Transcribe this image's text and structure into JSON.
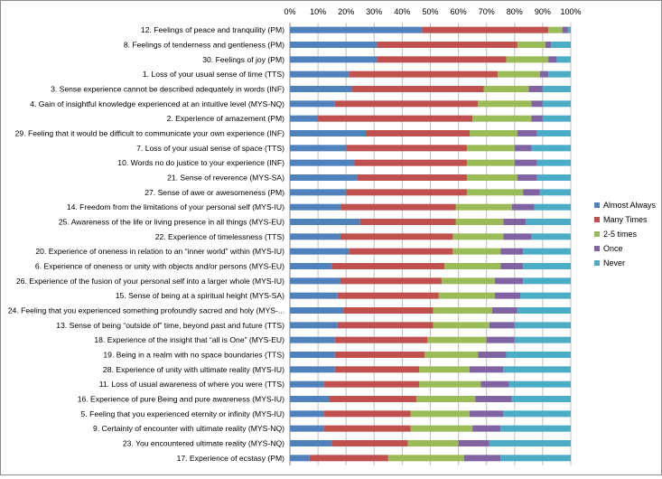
{
  "chart_data": {
    "type": "stacked-bar-horizontal-100",
    "xlim": [
      0,
      100
    ],
    "x_ticks": [
      "0%",
      "10%",
      "20%",
      "30%",
      "40%",
      "50%",
      "60%",
      "70%",
      "80%",
      "90%",
      "100%"
    ],
    "grid": true,
    "legend_position": "right",
    "series": [
      {
        "name": "Almost Always",
        "color": "#4f81bd"
      },
      {
        "name": "Many Times",
        "color": "#c0504d"
      },
      {
        "name": "2-5 times",
        "color": "#9bbb59"
      },
      {
        "name": "Once",
        "color": "#8064a2"
      },
      {
        "name": "Never",
        "color": "#4bacc6"
      }
    ],
    "categories": [
      {
        "label": "12. Feelings of peace and tranquility (PM)",
        "values": [
          47,
          45,
          5,
          2,
          1
        ]
      },
      {
        "label": "8. Feelings of tenderness and gentleness (PM)",
        "values": [
          31,
          50,
          10,
          2,
          7
        ]
      },
      {
        "label": "30. Feelings of joy (PM)",
        "values": [
          31,
          46,
          15,
          3,
          5
        ]
      },
      {
        "label": "1. Loss of your usual sense of time (TTS)",
        "values": [
          21,
          53,
          15,
          3,
          8
        ]
      },
      {
        "label": "3. Sense experience cannot be described adequately in words (INF)",
        "values": [
          22,
          47,
          16,
          5,
          10
        ]
      },
      {
        "label": "4. Gain of insightful knowledge experienced at an intuitive level (MYS-NQ)",
        "values": [
          16,
          51,
          19,
          4,
          10
        ]
      },
      {
        "label": "2. Experience of amazement (PM)",
        "values": [
          10,
          55,
          21,
          4,
          10
        ]
      },
      {
        "label": "29. Feeling that it would be difficult to communicate your own experience (INF)",
        "values": [
          27,
          37,
          17,
          7,
          12
        ]
      },
      {
        "label": "7. Loss of your usual sense of space (TTS)",
        "values": [
          20,
          43,
          17,
          6,
          14
        ]
      },
      {
        "label": "10. Words no do justice to your experience (INF)",
        "values": [
          23,
          40,
          17,
          8,
          12
        ]
      },
      {
        "label": "21. Sense of reverence (MYS-SA)",
        "values": [
          24,
          39,
          18,
          7,
          12
        ]
      },
      {
        "label": "27. Sense of awe or awesomeness (PM)",
        "values": [
          20,
          43,
          20,
          6,
          11
        ]
      },
      {
        "label": "14. Freedom from the limitations of your personal self (MYS-IU)",
        "values": [
          18,
          41,
          20,
          8,
          13
        ]
      },
      {
        "label": "25. Awareness of the life or living presence in all things (MYS-EU)",
        "values": [
          25,
          34,
          17,
          8,
          16
        ]
      },
      {
        "label": "22. Experience of timelessness (TTS)",
        "values": [
          18,
          40,
          18,
          10,
          14
        ]
      },
      {
        "label": "20. Experience of oneness in relation to an “inner world” within (MYS-IU)",
        "values": [
          21,
          37,
          17,
          8,
          17
        ]
      },
      {
        "label": "6. Experience of oneness or unity with objects and/or persons (MYS-EU)",
        "values": [
          15,
          40,
          20,
          8,
          17
        ]
      },
      {
        "label": "26. Experience of the fusion of your personal self into a larger whole (MYS-IU)",
        "values": [
          18,
          36,
          19,
          10,
          17
        ]
      },
      {
        "label": "15. Sense of being at a spiritual height (MYS-SA)",
        "values": [
          17,
          36,
          20,
          9,
          18
        ]
      },
      {
        "label": "24. Feeling that you experienced something profoundly sacred and holy (MYS-...",
        "values": [
          19,
          32,
          21,
          9,
          19
        ]
      },
      {
        "label": "13. Sense of being “outside of” time, beyond past and future (TTS)",
        "values": [
          17,
          34,
          20,
          9,
          20
        ]
      },
      {
        "label": "18. Experience of the insight that “all is One” (MYS-EU)",
        "values": [
          16,
          33,
          21,
          10,
          20
        ]
      },
      {
        "label": "19. Being in a realm with no space boundaries (TTS)",
        "values": [
          16,
          32,
          19,
          10,
          23
        ]
      },
      {
        "label": "28. Experience of unity with ultimate reality (MYS-IU)",
        "values": [
          16,
          30,
          18,
          12,
          24
        ]
      },
      {
        "label": "11. Loss of usual awareness of where you were (TTS)",
        "values": [
          12,
          34,
          22,
          10,
          22
        ]
      },
      {
        "label": "16. Experience of pure Being and pure awareness (MYS-IU)",
        "values": [
          14,
          31,
          21,
          13,
          21
        ]
      },
      {
        "label": "5. Feeling that you experienced eternity or infinity (MYS-IU)",
        "values": [
          12,
          31,
          21,
          12,
          24
        ]
      },
      {
        "label": "9. Certainty of encounter with ultimate reality (MYS-NQ)",
        "values": [
          12,
          31,
          22,
          10,
          25
        ]
      },
      {
        "label": "23. You encountered ultimate reality (MYS-NQ)",
        "values": [
          15,
          27,
          18,
          11,
          29
        ]
      },
      {
        "label": "17. Experience of ecstasy (PM)",
        "values": [
          7,
          28,
          27,
          13,
          25
        ]
      }
    ]
  }
}
